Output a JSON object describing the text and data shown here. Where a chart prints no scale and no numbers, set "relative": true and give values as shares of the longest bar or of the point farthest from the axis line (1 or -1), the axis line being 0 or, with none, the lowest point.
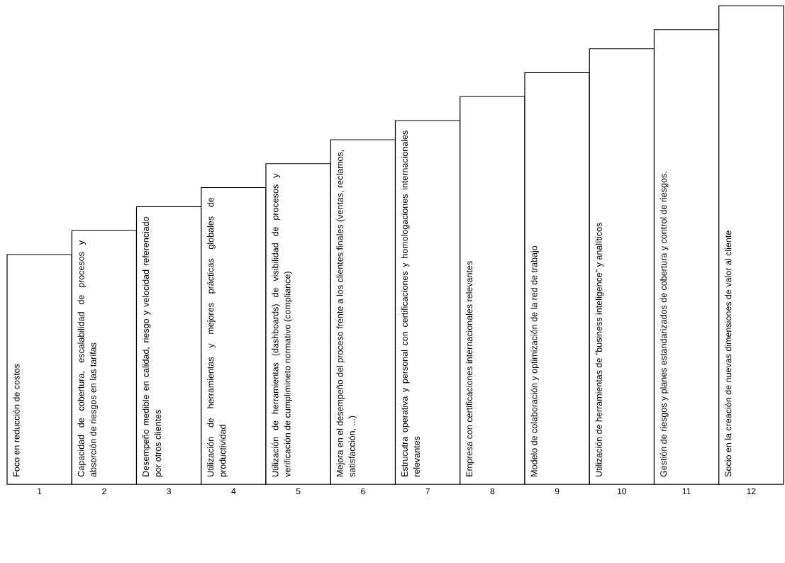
{
  "chart_data": {
    "type": "bar",
    "relative": true,
    "color": "#ffffff",
    "categories": [
      "1",
      "2",
      "3",
      "4",
      "5",
      "6",
      "7",
      "8",
      "9",
      "10",
      "11",
      "12"
    ],
    "values": [
      0.48,
      0.53,
      0.58,
      0.62,
      0.67,
      0.72,
      0.76,
      0.81,
      0.86,
      0.91,
      0.95,
      1
    ],
    "annotations": [
      "Foco en reducción de costos",
      "Capacidad de cobertura, escalabilidad de procesos y absorción de riesgos en las tarifas",
      "Desempeño medible en calidad, riesgo y velocidad referenciado por otros clientes",
      "Utilización de herramientas y mejores prácticas globales de productividad",
      "Utilización de herramientas (dashboards) de visibilidad de procesos y verificación de cumplimineto normativo (compliance)",
      "Mejora en el desempeño del proceso frente a los clientes finales (ventas, reclamos, satisfacción, ...)",
      "Estrucutra operativa y personal con certificaciones y homologaciones internacionales relevantes",
      "Empresa con certificaciones internacionales relevantes",
      "Modelo de colaboración y optimización de la red de trabajo",
      "Utilización de herramientas de \"business inteligence\" y analíticos",
      "Gestión de riesgos y planes estandarizados de cobertura y control de riesgos.",
      "Socio en la creación de nuevas dimensiones de valor al cliente"
    ]
  }
}
